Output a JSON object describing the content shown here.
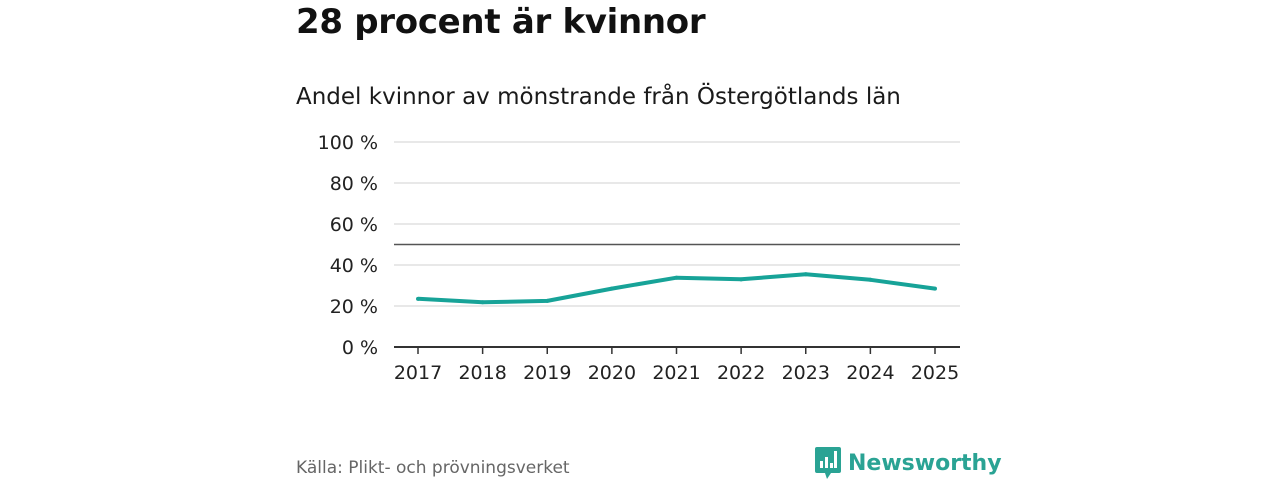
{
  "headline": "28 procent är kvinnor",
  "chart_data": {
    "type": "line",
    "title": "Andel kvinnor av mönstrande från Östergötlands län",
    "categories": [
      "2017",
      "2018",
      "2019",
      "2020",
      "2021",
      "2022",
      "2023",
      "2024",
      "2025"
    ],
    "series": [
      {
        "name": "Andel kvinnor",
        "values": [
          23.5,
          21.8,
          22.5,
          28.5,
          33.8,
          33.0,
          35.5,
          32.8,
          28.5
        ],
        "color": "#17a398"
      }
    ],
    "ylim": [
      0,
      100
    ],
    "yticks": [
      0,
      20,
      40,
      60,
      80,
      100
    ],
    "ytick_labels": [
      "0 %",
      "20 %",
      "40 %",
      "60 %",
      "80 %",
      "100 %"
    ],
    "reference_line": 50,
    "grid": true,
    "xlabel": "",
    "ylabel": ""
  },
  "source": "Källa: Plikt- och prövningsverket",
  "brand": {
    "name": "Newsworthy",
    "color": "#2aa394"
  }
}
